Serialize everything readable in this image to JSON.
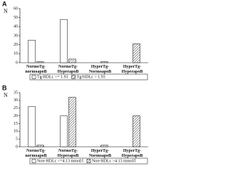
{
  "chart_data": [
    {
      "type": "bar",
      "panel": "A",
      "ylabel": "N",
      "categories": [
        "NormoTg- normoapoB",
        "NormoTg- HyperapoB",
        "HyperTg- NormoapoB",
        "HyperTg- HyperapoB"
      ],
      "series": [
        {
          "name": "Tg/HDLc <= 1.93",
          "color": "#ffffff",
          "hatch": false,
          "values": [
            25,
            48,
            0,
            0
          ]
        },
        {
          "name": "Tg/HDLc > 1.93",
          "color": "#555555",
          "hatch": true,
          "values": [
            1,
            4,
            1,
            21
          ]
        }
      ],
      "ylim": [
        0,
        60
      ],
      "yticks": [
        0,
        10,
        20,
        30,
        40,
        50,
        60
      ]
    },
    {
      "type": "bar",
      "panel": "B",
      "ylabel": "N",
      "categories": [
        "NormoTg- normoapoB",
        "NormoTg- HyperapoB",
        "HyperTg- NormoapoB",
        "HyperTg- HyperapoB"
      ],
      "series": [
        {
          "name": "Non-HDLc <=4.13 mmol/l",
          "color": "#ffffff",
          "hatch": false,
          "values": [
            26,
            20,
            0,
            0
          ]
        },
        {
          "name": "Non-HDLc >4.13 mmol/l",
          "color": "#555555",
          "hatch": true,
          "values": [
            1,
            32,
            1,
            20
          ]
        }
      ],
      "ylim": [
        0,
        35
      ],
      "yticks": [
        0,
        5,
        10,
        15,
        20,
        25,
        30,
        35
      ]
    }
  ]
}
